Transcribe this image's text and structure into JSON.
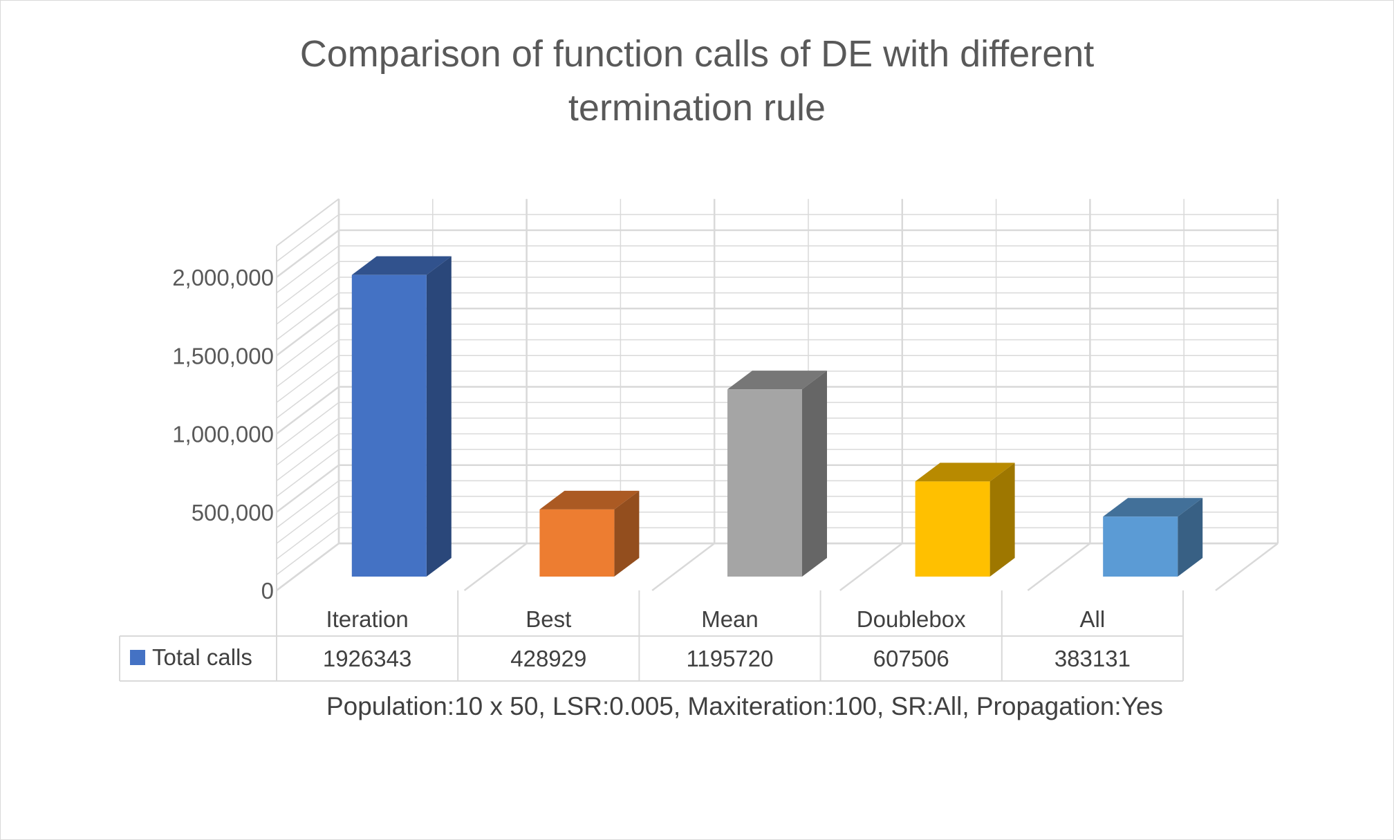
{
  "chart_data": {
    "type": "bar",
    "style": "3d-column-with-data-table",
    "title": "Comparison of function calls of DE with different termination rule",
    "title_lines": [
      "Comparison of function calls of DE with different",
      "termination rule"
    ],
    "xlabel": "Population:10 x 50, LSR:0.005, Maxiteration:100, SR:All, Propagation:Yes",
    "ylabel": "",
    "ylim": [
      0,
      2000000
    ],
    "yticks": [
      0,
      500000,
      1000000,
      1500000,
      2000000
    ],
    "ytick_labels": [
      "0",
      "500,000",
      "1,000,000",
      "1,500,000",
      "2,000,000"
    ],
    "categories": [
      "Iteration",
      "Best",
      "Mean",
      "Doublebox",
      "All"
    ],
    "series": [
      {
        "name": "Total calls",
        "values": [
          1926343,
          428929,
          1195720,
          607506,
          383131
        ],
        "value_labels": [
          "1926343",
          "428929",
          "1195720",
          "607506",
          "383131"
        ]
      }
    ],
    "bar_colors": [
      "#4472C4",
      "#ED7D31",
      "#A5A5A5",
      "#FFC000",
      "#5B9BD5"
    ],
    "legend_color": "#4472C4",
    "grid": true,
    "legend": "data-table"
  }
}
